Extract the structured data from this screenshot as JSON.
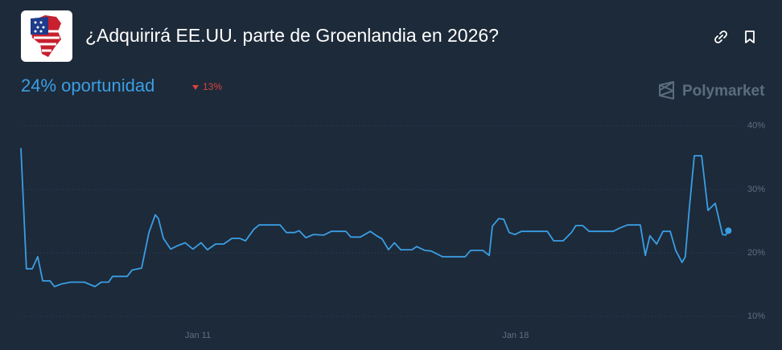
{
  "header": {
    "chance": "24% oportunidad",
    "change": "13%",
    "brand": "Polymarket"
  },
  "chart_data": {
    "type": "line",
    "title": "¿Adquirirá EE.UU. parte de Groenlandia en 2026?",
    "x": [
      7.1,
      7.22,
      7.35,
      7.47,
      7.58,
      7.74,
      7.84,
      7.99,
      8.2,
      8.5,
      8.73,
      8.87,
      9.03,
      9.12,
      9.44,
      9.55,
      9.76,
      9.92,
      10.06,
      10.13,
      10.24,
      10.4,
      10.54,
      10.72,
      10.89,
      11.07,
      11.21,
      11.39,
      11.57,
      11.75,
      11.92,
      12.05,
      12.23,
      12.35,
      12.81,
      12.95,
      13.13,
      13.23,
      13.38,
      13.55,
      13.77,
      13.94,
      14.26,
      14.37,
      14.58,
      14.8,
      14.94,
      15.06,
      15.2,
      15.33,
      15.47,
      15.72,
      15.82,
      16.0,
      16.14,
      16.39,
      16.89,
      17.01,
      17.28,
      17.42,
      17.49,
      17.63,
      17.74,
      17.86,
      17.99,
      18.13,
      18.7,
      18.84,
      19.05,
      19.23,
      19.33,
      19.48,
      19.62,
      20.15,
      20.29,
      20.47,
      20.75,
      20.86,
      20.96,
      21.11,
      21.25,
      21.41,
      21.53,
      21.67,
      21.74,
      21.83,
      21.94,
      22.1,
      22.24,
      22.4,
      22.56,
      22.63,
      22.69
    ],
    "series": [
      {
        "color": "#3a9ee4",
        "values": [
          36.5,
          17.5,
          17.5,
          19.4,
          15.6,
          15.6,
          14.7,
          15.1,
          15.4,
          15.4,
          14.7,
          15.4,
          15.4,
          16.3,
          16.3,
          17.3,
          17.6,
          23.2,
          26.0,
          25.4,
          22.3,
          20.6,
          21.1,
          21.6,
          20.6,
          21.6,
          20.5,
          21.4,
          21.4,
          22.3,
          22.3,
          21.9,
          23.7,
          24.4,
          24.4,
          23.2,
          23.2,
          23.5,
          22.4,
          22.9,
          22.8,
          23.4,
          23.4,
          22.5,
          22.5,
          23.4,
          22.7,
          22.2,
          20.5,
          21.6,
          20.5,
          20.5,
          21.0,
          20.4,
          20.3,
          19.4,
          19.4,
          20.4,
          20.4,
          19.6,
          24.2,
          25.4,
          25.3,
          23.2,
          22.9,
          23.4,
          23.4,
          21.9,
          21.9,
          23.2,
          24.3,
          24.3,
          23.4,
          23.4,
          23.9,
          24.4,
          24.4,
          19.6,
          22.7,
          21.4,
          23.4,
          23.4,
          20.4,
          18.5,
          19.4,
          27.0,
          35.3,
          35.3,
          26.7,
          27.8,
          22.9,
          22.8,
          23.5
        ]
      }
    ],
    "xlim": [
      7.1,
      22.95
    ],
    "xticks": [
      {
        "value": 11,
        "label": "Jan 11"
      },
      {
        "value": 18,
        "label": "Jan 18"
      }
    ],
    "ylim": [
      8,
      42
    ],
    "yticks": [
      {
        "value": 10,
        "label": "10%"
      },
      {
        "value": 20,
        "label": "20%"
      },
      {
        "value": 30,
        "label": "30%"
      },
      {
        "value": 40,
        "label": "40%"
      }
    ],
    "grid": true
  }
}
